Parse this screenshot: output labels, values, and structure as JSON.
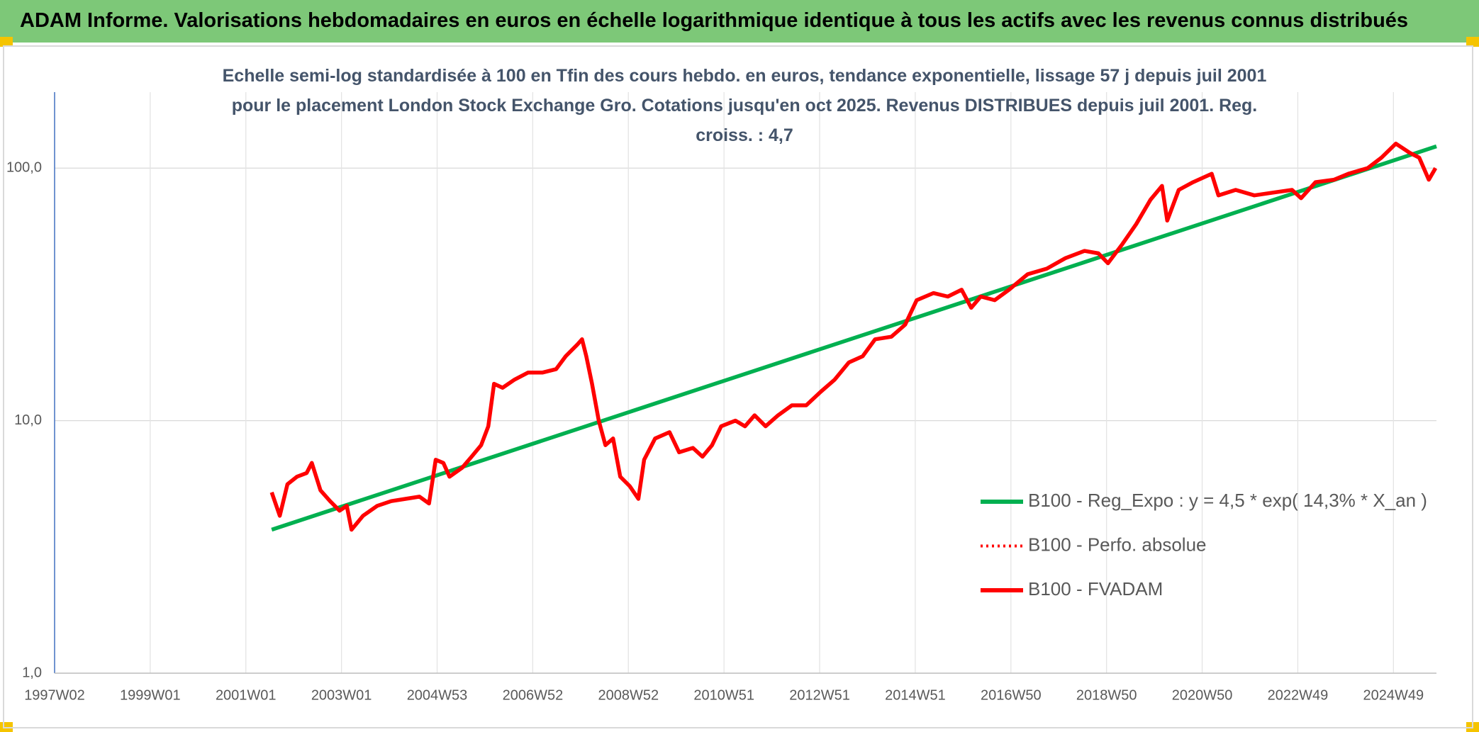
{
  "header": {
    "title": "ADAM Informe. Valorisations hebdomadaires en euros en échelle logarithmique identique à tous les actifs avec les revenus connus distribués"
  },
  "chart_data": {
    "type": "line",
    "title": "Echelle semi-log standardisée à 100 en Tfin des cours hebdo. en euros, tendance exponentielle, lissage 57 j depuis juil 2001 pour le placement London Stock Exchange Gro. Cotations jusqu'en oct 2025. Revenus DISTRIBUES depuis juil 2001. Reg. croiss. : 4,7",
    "log_scale": true,
    "grid": true,
    "xlim": [
      1997,
      2025.9
    ],
    "xticks": [
      {
        "value": 1997,
        "label": "1997W02"
      },
      {
        "value": 1999,
        "label": "1999W01"
      },
      {
        "value": 2001,
        "label": "2001W01"
      },
      {
        "value": 2003,
        "label": "2003W01"
      },
      {
        "value": 2005,
        "label": "2004W53"
      },
      {
        "value": 2007,
        "label": "2006W52"
      },
      {
        "value": 2009,
        "label": "2008W52"
      },
      {
        "value": 2011,
        "label": "2010W51"
      },
      {
        "value": 2013,
        "label": "2012W51"
      },
      {
        "value": 2015,
        "label": "2014W51"
      },
      {
        "value": 2017,
        "label": "2016W50"
      },
      {
        "value": 2019,
        "label": "2018W50"
      },
      {
        "value": 2021,
        "label": "2020W50"
      },
      {
        "value": 2023,
        "label": "2022W49"
      },
      {
        "value": 2025,
        "label": "2024W49"
      }
    ],
    "ylim": [
      1,
      200
    ],
    "yticks": [
      {
        "value": 1,
        "label": "1,0"
      },
      {
        "value": 10,
        "label": "10,0"
      },
      {
        "value": 100,
        "label": "100,0"
      }
    ],
    "legend": "right",
    "series": [
      {
        "name": "B100 - Reg_Expo : y = 4,5 * exp( 14,3% *  X_an )",
        "color": "#00b050",
        "x": [
          2001.54,
          2025.9
        ],
        "values": [
          3.7,
          122
        ]
      },
      {
        "name": "B100 - Perfo. absolue",
        "color": "#ff0000",
        "dash": "dotted"
      },
      {
        "name": "B100 - FVADAM",
        "color": "#ff0000",
        "x": [
          2001.54,
          2001.71,
          2001.87,
          2002.07,
          2002.27,
          2002.38,
          2002.56,
          2002.76,
          2002.96,
          2003.11,
          2003.21,
          2003.45,
          2003.75,
          2004.04,
          2004.34,
          2004.63,
          2004.83,
          2004.97,
          2005.13,
          2005.26,
          2005.52,
          2005.72,
          2005.92,
          2006.07,
          2006.19,
          2006.37,
          2006.61,
          2006.9,
          2007.2,
          2007.49,
          2007.69,
          2007.93,
          2008.03,
          2008.12,
          2008.24,
          2008.38,
          2008.52,
          2008.68,
          2008.83,
          2009.03,
          2009.21,
          2009.33,
          2009.56,
          2009.86,
          2010.06,
          2010.35,
          2010.55,
          2010.75,
          2010.94,
          2011.24,
          2011.44,
          2011.64,
          2011.87,
          2012.13,
          2012.42,
          2012.72,
          2013.02,
          2013.31,
          2013.61,
          2013.9,
          2014.16,
          2014.5,
          2014.79,
          2015.03,
          2015.38,
          2015.68,
          2015.97,
          2016.17,
          2016.37,
          2016.66,
          2016.96,
          2017.35,
          2017.75,
          2018.14,
          2018.54,
          2018.83,
          2019.03,
          2019.33,
          2019.62,
          2019.92,
          2020.16,
          2020.27,
          2020.51,
          2020.81,
          2021.2,
          2021.34,
          2021.7,
          2022.09,
          2022.48,
          2022.88,
          2023.07,
          2023.37,
          2023.76,
          2024.06,
          2024.46,
          2024.75,
          2025.05,
          2025.34,
          2025.54,
          2025.74,
          2025.88
        ],
        "values": [
          5.2,
          4.2,
          5.6,
          6.0,
          6.2,
          6.8,
          5.3,
          4.8,
          4.4,
          4.6,
          3.7,
          4.2,
          4.6,
          4.8,
          4.9,
          5.0,
          4.7,
          7.0,
          6.8,
          6.0,
          6.5,
          7.2,
          8.0,
          9.5,
          14,
          13.5,
          14.5,
          15.5,
          15.5,
          16,
          18,
          20,
          21,
          18,
          14,
          10,
          8.0,
          8.5,
          6.0,
          5.5,
          4.9,
          7.0,
          8.5,
          9.0,
          7.5,
          7.8,
          7.2,
          8.0,
          9.5,
          10,
          9.5,
          10.5,
          9.5,
          10.5,
          11.5,
          11.5,
          13,
          14.5,
          17,
          18,
          21,
          21.5,
          24,
          30,
          32,
          31,
          33,
          28,
          31,
          30,
          33,
          38,
          40,
          44,
          47,
          46,
          42,
          50,
          60,
          75,
          85,
          62,
          82,
          88,
          95,
          78,
          82,
          78,
          80,
          82,
          76,
          88,
          90,
          95,
          100,
          110,
          125,
          115,
          110,
          90,
          100
        ]
      }
    ]
  }
}
